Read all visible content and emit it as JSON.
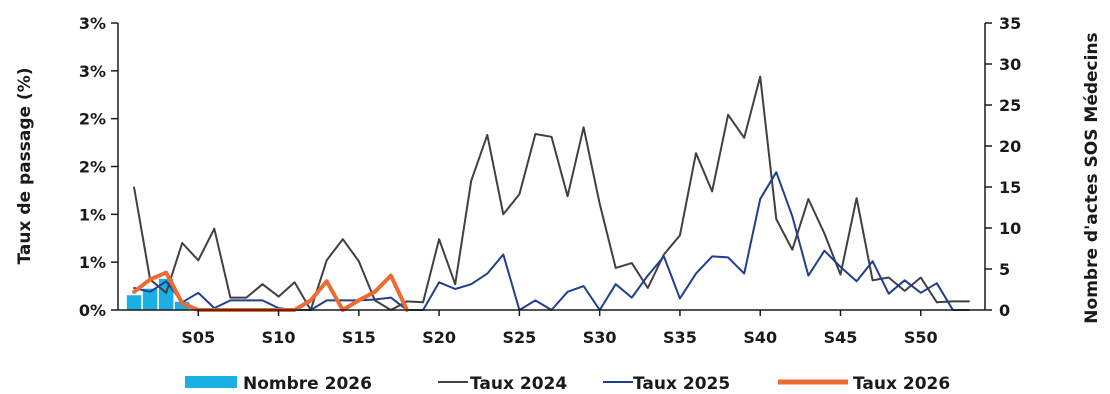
{
  "chart_data": {
    "type": "bar+line",
    "title": "",
    "x_tick_labels": [
      "S05",
      "S10",
      "S15",
      "S20",
      "S25",
      "S30",
      "S35",
      "S40",
      "S45",
      "S50"
    ],
    "x_tick_weeks": [
      5,
      10,
      15,
      20,
      25,
      30,
      35,
      40,
      45,
      50
    ],
    "weeks_range": [
      0,
      54
    ],
    "y_left": {
      "label": "Taux de passage (%)",
      "range": [
        0,
        3.0
      ],
      "tick_values": [
        0,
        0.5,
        1.0,
        1.5,
        2.0,
        2.5,
        3.0
      ],
      "tick_labels": [
        "0%",
        "1%",
        "1%",
        "2%",
        "2%",
        "3%",
        "3%"
      ]
    },
    "y_right": {
      "label": "Nombre d'actes SOS Médecins",
      "range": [
        0,
        35
      ],
      "tick_values": [
        0,
        5,
        10,
        15,
        20,
        25,
        30,
        35
      ],
      "tick_labels": [
        "0",
        "5",
        "10",
        "15",
        "20",
        "25",
        "30",
        "35"
      ]
    },
    "grid": false,
    "legend_position": "bottom",
    "series": [
      {
        "name": "Nombre 2026",
        "kind": "bar",
        "axis": "right",
        "color": "#1ab0e6",
        "weeks": [
          1,
          2,
          3,
          4,
          5
        ],
        "values": [
          1.8,
          2.6,
          3.8,
          1.0,
          0.2
        ]
      },
      {
        "name": "Taux 2024",
        "kind": "line",
        "axis": "left",
        "color": "#404040",
        "weeks": [
          1,
          2,
          3,
          4,
          5,
          6,
          7,
          8,
          9,
          10,
          11,
          12,
          13,
          14,
          15,
          16,
          17,
          18,
          19,
          20,
          21,
          22,
          23,
          24,
          25,
          26,
          27,
          28,
          29,
          30,
          31,
          32,
          33,
          34,
          35,
          36,
          37,
          38,
          39,
          40,
          41,
          42,
          43,
          44,
          45,
          46,
          47,
          48,
          49,
          50,
          51,
          52,
          53
        ],
        "values": [
          1.28,
          0.32,
          0.18,
          0.7,
          0.52,
          0.85,
          0.13,
          0.13,
          0.27,
          0.14,
          0.29,
          0.0,
          0.52,
          0.74,
          0.51,
          0.1,
          0.0,
          0.09,
          0.08,
          0.74,
          0.27,
          1.35,
          1.83,
          1.0,
          1.21,
          1.84,
          1.81,
          1.19,
          1.91,
          1.11,
          0.44,
          0.49,
          0.23,
          0.58,
          0.78,
          1.64,
          1.24,
          2.04,
          1.8,
          2.44,
          0.95,
          0.63,
          1.16,
          0.8,
          0.37,
          1.17,
          0.31,
          0.34,
          0.2,
          0.34,
          0.08,
          0.09,
          0.09
        ]
      },
      {
        "name": "Taux 2025",
        "kind": "line",
        "axis": "left",
        "color": "#1f3f8f",
        "weeks": [
          1,
          2,
          3,
          4,
          5,
          6,
          7,
          8,
          9,
          10,
          11,
          12,
          13,
          14,
          15,
          16,
          17,
          18,
          19,
          20,
          21,
          22,
          23,
          24,
          25,
          26,
          27,
          28,
          29,
          30,
          31,
          32,
          33,
          34,
          35,
          36,
          37,
          38,
          39,
          40,
          41,
          42,
          43,
          44,
          45,
          46,
          47,
          48,
          49,
          50,
          51,
          52,
          53
        ],
        "values": [
          0.23,
          0.19,
          0.3,
          0.08,
          0.18,
          0.02,
          0.1,
          0.1,
          0.1,
          0.02,
          0.0,
          0.0,
          0.1,
          0.1,
          0.1,
          0.11,
          0.13,
          0.0,
          0.0,
          0.29,
          0.22,
          0.27,
          0.38,
          0.58,
          0.0,
          0.1,
          0.0,
          0.19,
          0.25,
          0.0,
          0.27,
          0.13,
          0.36,
          0.56,
          0.12,
          0.38,
          0.56,
          0.55,
          0.38,
          1.16,
          1.44,
          0.98,
          0.36,
          0.62,
          0.45,
          0.3,
          0.51,
          0.17,
          0.31,
          0.18,
          0.28,
          0.0,
          0.0
        ]
      },
      {
        "name": "Taux 2026",
        "kind": "line",
        "axis": "left",
        "color": "#ee6a33",
        "weeks": [
          1,
          2,
          3,
          4,
          5,
          6,
          7,
          8,
          9,
          10,
          11,
          12,
          13,
          14,
          15,
          16,
          17,
          18
        ],
        "values": [
          0.19,
          0.32,
          0.39,
          0.07,
          0.0,
          0.0,
          0.0,
          0.0,
          0.0,
          0.0,
          0.0,
          0.1,
          0.3,
          0.0,
          0.1,
          0.19,
          0.36,
          0.0
        ]
      }
    ]
  }
}
